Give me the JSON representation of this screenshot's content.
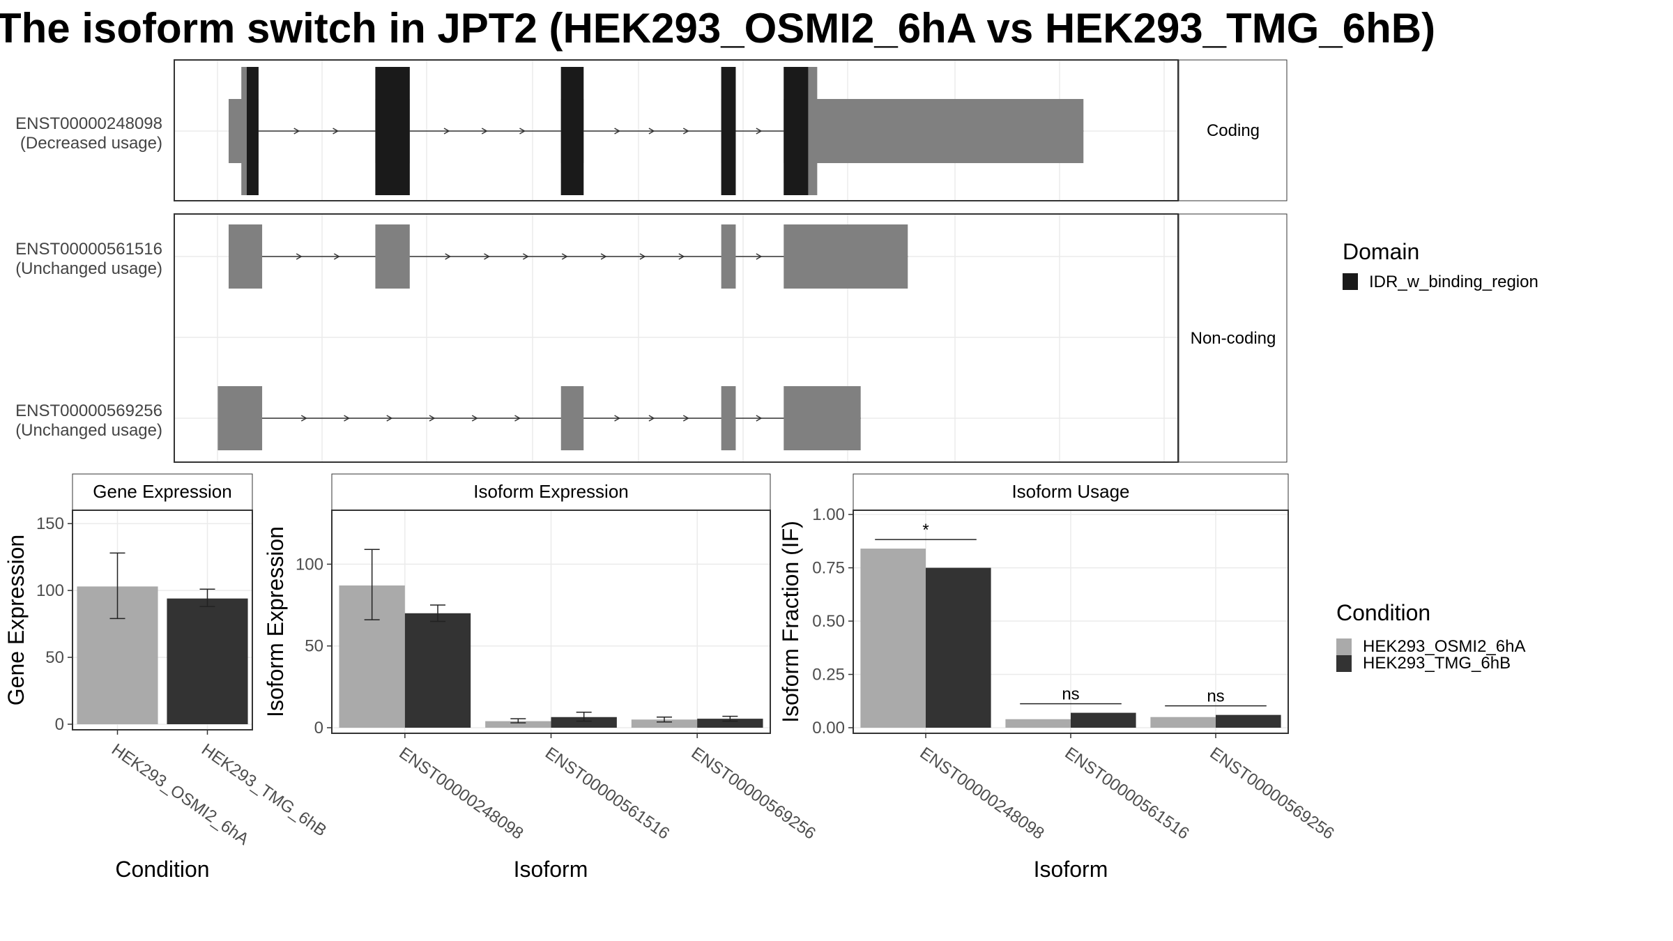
{
  "title": "The isoform switch in JPT2 (HEK293_OSMI2_6hA vs HEK293_TMG_6hB)",
  "colors": {
    "condition_a": "#aaaaaa",
    "condition_b": "#333333",
    "domain": "#1a1a1a",
    "utr": "#808080",
    "panel_bg": "#ffffff",
    "strip_bg": "#ffffff",
    "grid": "#ebebeb"
  },
  "chart_data": [
    {
      "type": "gene-structure",
      "name": "transcript-structure",
      "facets": [
        "Coding",
        "Non-coding"
      ],
      "transcripts": [
        {
          "id": "ENST00000248098",
          "usage": "(Decreased usage)",
          "facet": "Coding",
          "coding": true,
          "exons": [
            [
              0.0,
              0.02
            ],
            [
              0.02,
              0.033
            ],
            [
              0.162,
              0.2
            ],
            [
              0.367,
              0.392
            ],
            [
              0.544,
              0.56
            ],
            [
              0.613,
              0.944
            ]
          ],
          "domains": [
            [
              0.02,
              0.033
            ],
            [
              0.162,
              0.2
            ],
            [
              0.367,
              0.392
            ],
            [
              0.544,
              0.56
            ],
            [
              0.613,
              0.64
            ]
          ]
        },
        {
          "id": "ENST00000561516",
          "usage": "(Unchanged usage)",
          "facet": "Non-coding",
          "coding": false,
          "exons": [
            [
              0.0,
              0.037
            ],
            [
              0.162,
              0.2
            ],
            [
              0.544,
              0.56
            ],
            [
              0.613,
              0.75
            ]
          ],
          "domains": []
        },
        {
          "id": "ENST00000569256",
          "usage": "(Unchanged usage)",
          "facet": "Non-coding",
          "coding": false,
          "exons": [
            [
              -0.012,
              0.037
            ],
            [
              0.367,
              0.392
            ],
            [
              0.544,
              0.56
            ],
            [
              0.613,
              0.698
            ]
          ],
          "domains": []
        }
      ],
      "legend": {
        "title": "Domain",
        "items": [
          "IDR_w_binding_region"
        ]
      }
    },
    {
      "type": "bar",
      "name": "gene-expression",
      "strip": "Gene Expression",
      "xlabel": "Condition",
      "ylabel": "Gene Expression",
      "ylim": [
        0,
        160
      ],
      "yticks": [
        0,
        50,
        100,
        150
      ],
      "categories": [
        "HEK293_OSMI2_6hA",
        "HEK293_TMG_6hB"
      ],
      "values": [
        103,
        94
      ],
      "errors": [
        [
          79,
          128
        ],
        [
          88,
          101
        ]
      ]
    },
    {
      "type": "bar",
      "name": "isoform-expression",
      "strip": "Isoform Expression",
      "xlabel": "Isoform",
      "ylabel": "Isoform Expression",
      "ylim": [
        0,
        133
      ],
      "yticks": [
        0,
        50,
        100
      ],
      "categories": [
        "ENST00000248098",
        "ENST00000561516",
        "ENST00000569256"
      ],
      "series": [
        {
          "name": "HEK293_OSMI2_6hA",
          "values": [
            87,
            4,
            5
          ],
          "errors": [
            [
              66,
              109
            ],
            [
              3,
              5.5
            ],
            [
              3.5,
              6.5
            ]
          ]
        },
        {
          "name": "HEK293_TMG_6hB",
          "values": [
            70,
            6.5,
            5.5
          ],
          "errors": [
            [
              65,
              75
            ],
            [
              4,
              9.5
            ],
            [
              4,
              7
            ]
          ]
        }
      ]
    },
    {
      "type": "bar",
      "name": "isoform-usage",
      "strip": "Isoform Usage",
      "xlabel": "Isoform",
      "ylabel": "Isoform Fraction (IF)",
      "ylim": [
        0,
        1.02
      ],
      "yticks": [
        "0.00",
        "0.25",
        "0.50",
        "0.75",
        "1.00"
      ],
      "categories": [
        "ENST00000248098",
        "ENST00000561516",
        "ENST00000569256"
      ],
      "series": [
        {
          "name": "HEK293_OSMI2_6hA",
          "values": [
            0.84,
            0.04,
            0.05
          ]
        },
        {
          "name": "HEK293_TMG_6hB",
          "values": [
            0.75,
            0.07,
            0.06
          ]
        }
      ],
      "significance": [
        "*",
        "ns",
        "ns"
      ]
    }
  ],
  "condition_legend": {
    "title": "Condition",
    "items": [
      "HEK293_OSMI2_6hA",
      "HEK293_TMG_6hB"
    ]
  }
}
